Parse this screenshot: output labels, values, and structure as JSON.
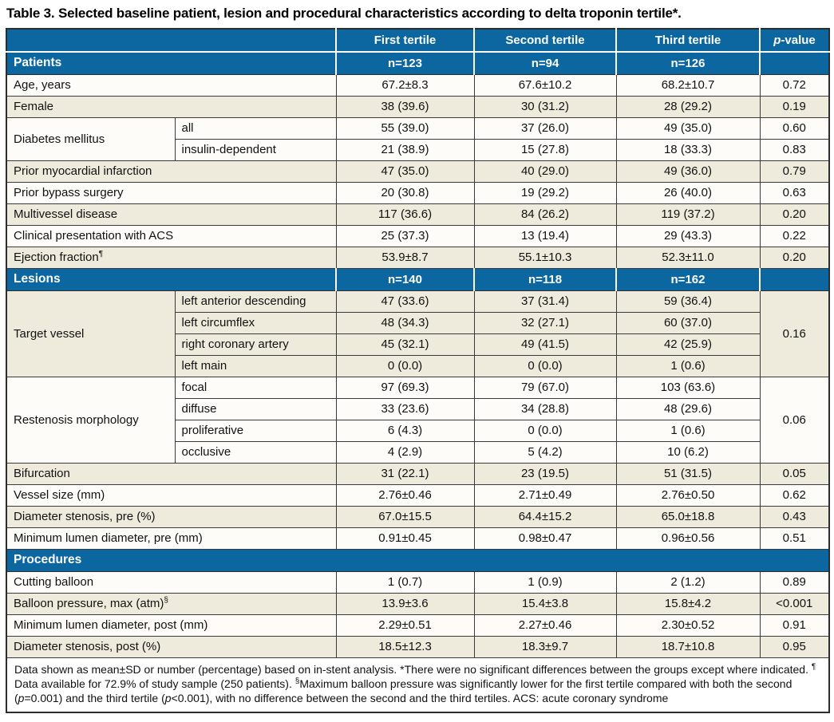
{
  "title": "Table 3. Selected baseline patient, lesion and procedural characteristics according to delta troponin tertile*.",
  "colors": {
    "header_blue": "#0c67a1",
    "row_beige": "#eeebdd",
    "row_white": "#fdfcf8",
    "border_dark": "#3a3a3a"
  },
  "table": {
    "header": {
      "blank": "",
      "cols": [
        "First tertile",
        "Second tertile",
        "Third tertile"
      ],
      "pvalue": {
        "italic": "p",
        "rest": "-value"
      }
    },
    "sections": [
      {
        "label": "Patients",
        "counts": [
          "n=123",
          "n=94",
          "n=126"
        ],
        "rows": [
          {
            "label": "Age, years",
            "values": [
              "67.2±8.3",
              "67.6±10.2",
              "68.2±10.7"
            ],
            "p": "0.72",
            "shade": "white"
          },
          {
            "label": "Female",
            "values": [
              "38 (39.6)",
              "30 (31.2)",
              "28 (29.2)"
            ],
            "p": "0.19",
            "shade": "beige"
          },
          {
            "label": "Diabetes mellitus",
            "shade": "white",
            "subrows": [
              {
                "sublabel": "all",
                "values": [
                  "55 (39.0)",
                  "37 (26.0)",
                  "49 (35.0)"
                ],
                "p": "0.60"
              },
              {
                "sublabel": "insulin-dependent",
                "values": [
                  "21 (38.9)",
                  "15 (27.8)",
                  "18 (33.3)"
                ],
                "p": "0.83"
              }
            ]
          },
          {
            "label": "Prior myocardial infarction",
            "values": [
              "47 (35.0)",
              "40 (29.0)",
              "49 (36.0)"
            ],
            "p": "0.79",
            "shade": "beige"
          },
          {
            "label": "Prior bypass surgery",
            "values": [
              "20 (30.8)",
              "19 (29.2)",
              "26 (40.0)"
            ],
            "p": "0.63",
            "shade": "white"
          },
          {
            "label": "Multivessel disease",
            "values": [
              "117 (36.6)",
              "84 (26.2)",
              "119 (37.2)"
            ],
            "p": "0.20",
            "shade": "beige"
          },
          {
            "label": "Clinical presentation with ACS",
            "values": [
              "25 (37.3)",
              "13 (19.4)",
              "29 (43.3)"
            ],
            "p": "0.22",
            "shade": "white"
          },
          {
            "label": "Ejection fraction",
            "label_sup": "¶",
            "values": [
              "53.9±8.7",
              "55.1±10.3",
              "52.3±11.0"
            ],
            "p": "0.20",
            "shade": "beige"
          }
        ]
      },
      {
        "label": "Lesions",
        "counts": [
          "n=140",
          "n=118",
          "n=162"
        ],
        "rows": [
          {
            "label": "Target vessel",
            "shade": "beige",
            "p": "0.16",
            "subrows": [
              {
                "sublabel": "left anterior descending",
                "values": [
                  "47 (33.6)",
                  "37 (31.4)",
                  "59 (36.4)"
                ]
              },
              {
                "sublabel": "left circumflex",
                "values": [
                  "48 (34.3)",
                  "32 (27.1)",
                  "60 (37.0)"
                ]
              },
              {
                "sublabel": "right coronary artery",
                "values": [
                  "45 (32.1)",
                  "49 (41.5)",
                  "42 (25.9)"
                ]
              },
              {
                "sublabel": "left main",
                "values": [
                  "0 (0.0)",
                  "0 (0.0)",
                  "1 (0.6)"
                ]
              }
            ]
          },
          {
            "label": "Restenosis morphology",
            "shade": "white",
            "p": "0.06",
            "subrows": [
              {
                "sublabel": "focal",
                "values": [
                  "97 (69.3)",
                  "79 (67.0)",
                  "103 (63.6)"
                ]
              },
              {
                "sublabel": "diffuse",
                "values": [
                  "33 (23.6)",
                  "34 (28.8)",
                  "48 (29.6)"
                ]
              },
              {
                "sublabel": "proliferative",
                "values": [
                  "6 (4.3)",
                  "0 (0.0)",
                  "1 (0.6)"
                ]
              },
              {
                "sublabel": "occlusive",
                "values": [
                  "4 (2.9)",
                  "5 (4.2)",
                  "10 (6.2)"
                ]
              }
            ]
          },
          {
            "label": "Bifurcation",
            "values": [
              "31 (22.1)",
              "23 (19.5)",
              "51 (31.5)"
            ],
            "p": "0.05",
            "shade": "beige"
          },
          {
            "label": "Vessel size (mm)",
            "values": [
              "2.76±0.46",
              "2.71±0.49",
              "2.76±0.50"
            ],
            "p": "0.62",
            "shade": "white"
          },
          {
            "label": "Diameter stenosis, pre (%)",
            "values": [
              "67.0±15.5",
              "64.4±15.2",
              "65.0±18.8"
            ],
            "p": "0.43",
            "shade": "beige"
          },
          {
            "label": "Minimum lumen diameter, pre (mm)",
            "values": [
              "0.91±0.45",
              "0.98±0.47",
              "0.96±0.56"
            ],
            "p": "0.51",
            "shade": "white"
          }
        ]
      },
      {
        "label": "Procedures",
        "counts": null,
        "rows": [
          {
            "label": "Cutting balloon",
            "values": [
              "1 (0.7)",
              "1 (0.9)",
              "2 (1.2)"
            ],
            "p": "0.89",
            "shade": "white"
          },
          {
            "label": "Balloon pressure, max (atm)",
            "label_sup": "§",
            "values": [
              "13.9±3.6",
              "15.4±3.8",
              "15.8±4.2"
            ],
            "p": "<0.001",
            "shade": "beige"
          },
          {
            "label": "Minimum lumen diameter, post (mm)",
            "values": [
              "2.29±0.51",
              "2.27±0.46",
              "2.30±0.52"
            ],
            "p": "0.91",
            "shade": "white"
          },
          {
            "label": "Diameter stenosis, post (%)",
            "values": [
              "18.5±12.3",
              "18.3±9.7",
              "18.7±10.8"
            ],
            "p": "0.95",
            "shade": "beige"
          }
        ]
      }
    ],
    "footnote": {
      "seg1": "Data shown as mean±SD or number (percentage) based on in-stent analysis. *There were no significant differences between the groups except where indicated. ",
      "sup1": "¶",
      "seg2": " Data available for 72.9% of study sample (250 patients). ",
      "sup2": "§",
      "seg3": "Maximum balloon pressure was significantly lower for the first tertile compared with both the second (",
      "p1": "p",
      "seg4": "=0.001) and the third tertile (",
      "p2": "p",
      "seg5": "<0.001), with no difference between the second and the third tertiles. ACS: acute coronary syndrome"
    }
  }
}
